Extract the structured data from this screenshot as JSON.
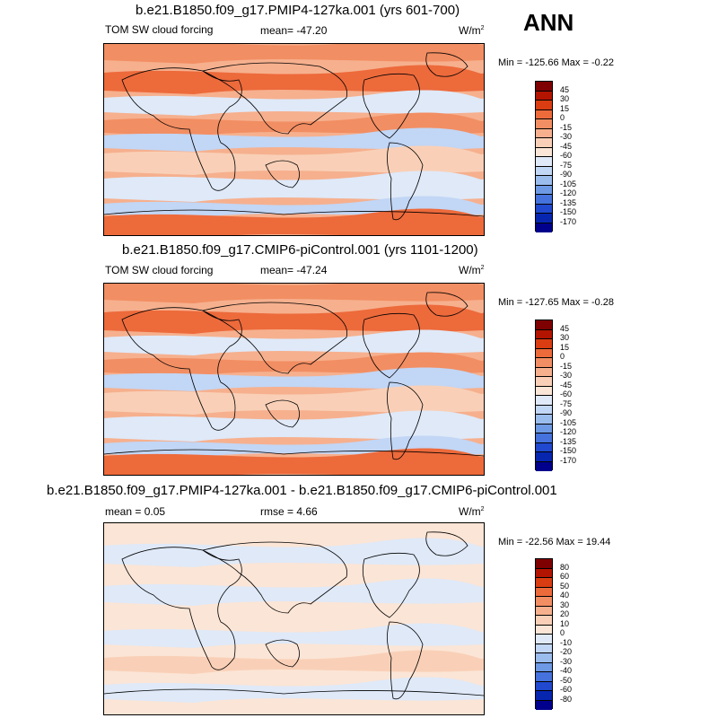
{
  "season": "ANN",
  "panels": [
    {
      "title": "b.e21.B1850.f09_g17.PMIP4-127ka.001 (yrs 601-700)",
      "variable": "TOM SW cloud forcing",
      "mean": "mean= -47.20",
      "units": "W/m",
      "units_sup": "2",
      "minmax": "Min = -125.66 Max =  -0.22"
    },
    {
      "title": "b.e21.B1850.f09_g17.CMIP6-piControl.001 (yrs 1101-1200)",
      "variable": "TOM SW cloud forcing",
      "mean": "mean= -47.24",
      "units": "W/m",
      "units_sup": "2",
      "minmax": "Min = -127.65 Max =  -0.28"
    },
    {
      "title": "b.e21.B1850.f09_g17.PMIP4-127ka.001 - b.e21.B1850.f09_g17.CMIP6-piControl.001",
      "variable": "mean =   0.05",
      "mean": "rmse =   4.66",
      "units": "W/m",
      "units_sup": "2",
      "minmax": "Min = -22.56 Max =  19.44"
    }
  ],
  "chart_data": [
    {
      "type": "heatmap",
      "title": "b.e21.B1850.f09_g17.PMIP4-127ka.001 (yrs 601-700)",
      "variable": "TOM SW cloud forcing",
      "units": "W/m2",
      "mean": -47.2,
      "min": -125.66,
      "max": -0.22,
      "colorbar_levels": [
        45,
        30,
        15,
        0,
        -15,
        -30,
        -45,
        -60,
        -75,
        -90,
        -105,
        -120,
        -135,
        -150,
        -170
      ],
      "colorbar_colors": [
        "#7f0000",
        "#b31400",
        "#d93d11",
        "#ed6a3b",
        "#f28e63",
        "#f6b08e",
        "#f9d0b7",
        "#fbe5d6",
        "#dfe9f8",
        "#c2d6f5",
        "#9bbdee",
        "#6e99e4",
        "#4572dc",
        "#2049cf",
        "#0726b0",
        "#00008c"
      ]
    },
    {
      "type": "heatmap",
      "title": "b.e21.B1850.f09_g17.CMIP6-piControl.001 (yrs 1101-1200)",
      "variable": "TOM SW cloud forcing",
      "units": "W/m2",
      "mean": -47.24,
      "min": -127.65,
      "max": -0.28,
      "colorbar_levels": [
        45,
        30,
        15,
        0,
        -15,
        -30,
        -45,
        -60,
        -75,
        -90,
        -105,
        -120,
        -135,
        -150,
        -170
      ],
      "colorbar_colors": [
        "#7f0000",
        "#b31400",
        "#d93d11",
        "#ed6a3b",
        "#f28e63",
        "#f6b08e",
        "#f9d0b7",
        "#fbe5d6",
        "#dfe9f8",
        "#c2d6f5",
        "#9bbdee",
        "#6e99e4",
        "#4572dc",
        "#2049cf",
        "#0726b0",
        "#00008c"
      ]
    },
    {
      "type": "heatmap",
      "title": "b.e21.B1850.f09_g17.PMIP4-127ka.001 - b.e21.B1850.f09_g17.CMIP6-piControl.001",
      "units": "W/m2",
      "mean": 0.05,
      "rmse": 4.66,
      "min": -22.56,
      "max": 19.44,
      "colorbar_levels": [
        80,
        60,
        50,
        40,
        30,
        20,
        10,
        0,
        -10,
        -20,
        -30,
        -40,
        -50,
        -60,
        -80
      ],
      "colorbar_colors": [
        "#7f0000",
        "#b31400",
        "#d93d11",
        "#ed6a3b",
        "#f28e63",
        "#f6b08e",
        "#f9d0b7",
        "#fbe5d6",
        "#dfe9f8",
        "#c2d6f5",
        "#9bbdee",
        "#6e99e4",
        "#4572dc",
        "#2049cf",
        "#0726b0",
        "#00008c"
      ]
    }
  ]
}
